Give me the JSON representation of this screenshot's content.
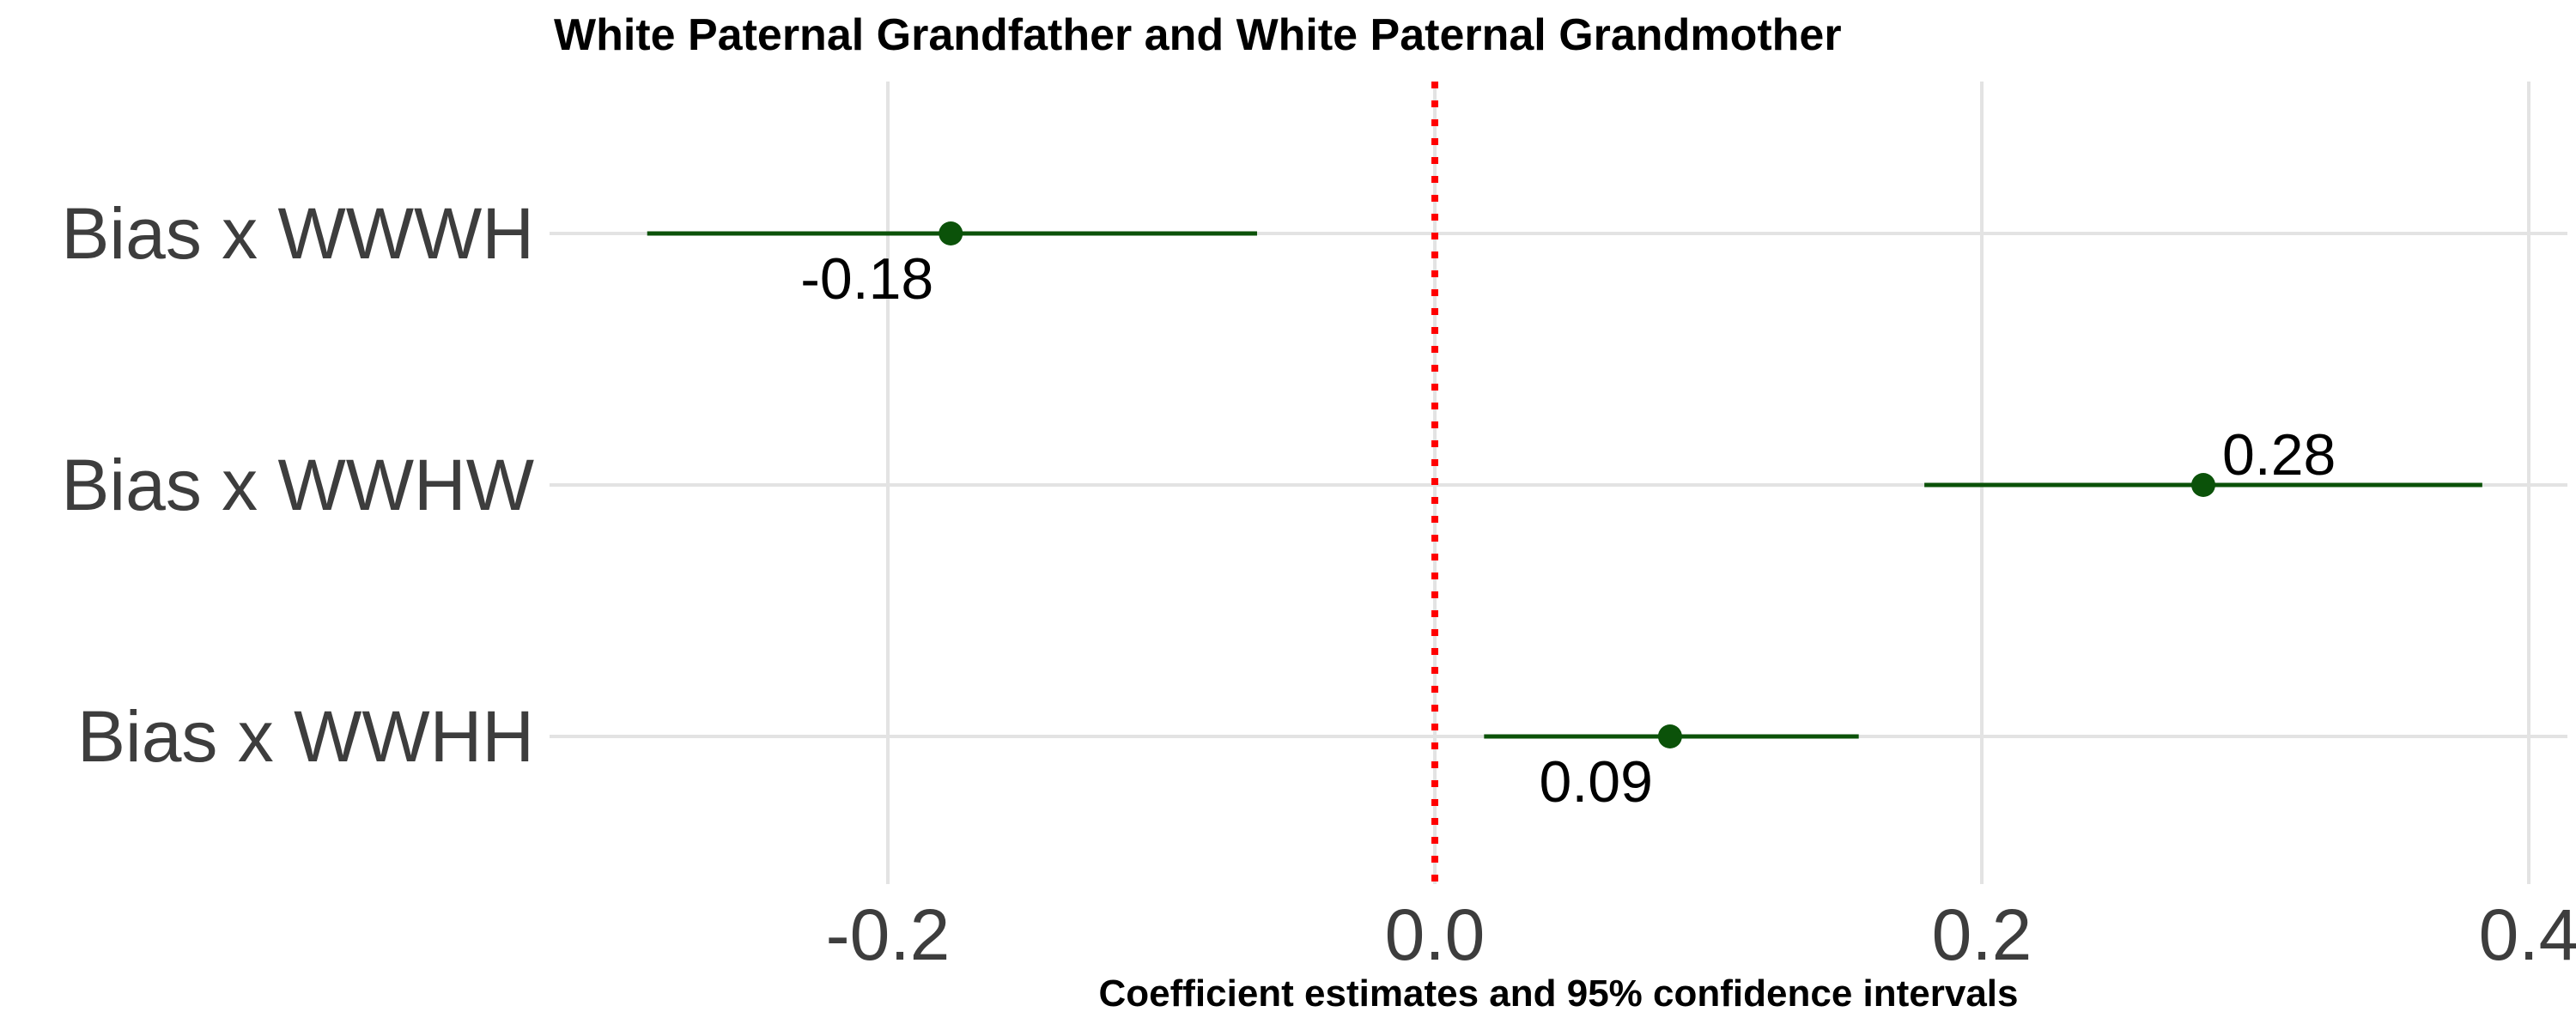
{
  "chart_data": {
    "type": "scatter",
    "title": "White Paternal Grandfather and White Paternal Grandmother",
    "xlabel": "Coefficient estimates and 95% confidence intervals",
    "ylabel": "",
    "xlim": [
      -0.4,
      0.42
    ],
    "xticks": [
      -0.2,
      0.0,
      0.2,
      0.4
    ],
    "xtick_labels": [
      "-0.2",
      "0.0",
      "0.2",
      "0.4"
    ],
    "grid": true,
    "reference_line": {
      "x": 0.0,
      "color": "#ff0000",
      "style": "dotted"
    },
    "point_color": "#0b5209",
    "points": [
      {
        "category": "Bias x WWWH",
        "estimate": -0.177,
        "ci_low": -0.288,
        "ci_high": -0.065,
        "label": "-0.18",
        "label_position": "below-left"
      },
      {
        "category": "Bias x WWHW",
        "estimate": 0.281,
        "ci_low": 0.179,
        "ci_high": 0.383,
        "label": "0.28",
        "label_position": "above-right"
      },
      {
        "category": "Bias x WWHH",
        "estimate": 0.086,
        "ci_low": 0.018,
        "ci_high": 0.155,
        "label": "0.09",
        "label_position": "below-left"
      }
    ]
  }
}
